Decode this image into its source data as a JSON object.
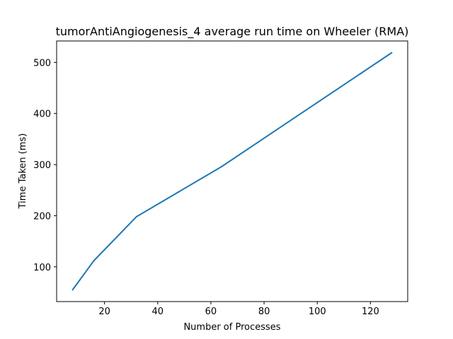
{
  "chart_data": {
    "type": "line",
    "title": "tumorAntiAngiogenesis_4 average run time on Wheeler (RMA)",
    "xlabel": "Number of Processes",
    "ylabel": "Time Taken (ms)",
    "xlim": [
      2,
      134
    ],
    "ylim": [
      32,
      542
    ],
    "x_ticks": [
      20,
      40,
      60,
      80,
      100,
      120
    ],
    "y_ticks": [
      100,
      200,
      300,
      400,
      500
    ],
    "grid": false,
    "series": [
      {
        "color": "#1f77b4",
        "points": [
          {
            "x": 8,
            "y": 55
          },
          {
            "x": 16,
            "y": 112
          },
          {
            "x": 32,
            "y": 198
          },
          {
            "x": 64,
            "y": 296
          },
          {
            "x": 128,
            "y": 519
          }
        ]
      }
    ]
  }
}
